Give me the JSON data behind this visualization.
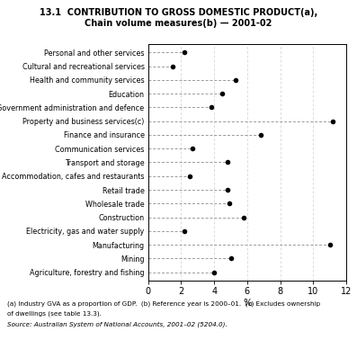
{
  "title1": "13.1  CONTRIBUTION TO GROSS DOMESTIC PRODUCT(a),",
  "title2": "Chain volume measures(b) — 2001-02",
  "categories": [
    "Agriculture, forestry and fishing",
    "Mining",
    "Manufacturing",
    "Electricity, gas and water supply",
    "Construction",
    "Wholesale trade",
    "Retail trade",
    "Accommodation, cafes and restaurants",
    "Transport and storage",
    "Communication services",
    "Finance and insurance",
    "Property and business services(c)",
    "Government administration and defence",
    "Education",
    "Health and community services",
    "Cultural and recreational services",
    "Personal and other services"
  ],
  "values": [
    4.0,
    5.0,
    11.0,
    2.2,
    5.8,
    4.9,
    4.8,
    2.5,
    4.8,
    2.7,
    6.8,
    11.2,
    3.8,
    4.5,
    5.3,
    1.5,
    2.2
  ],
  "xlabel": "%",
  "xlim": [
    0,
    12
  ],
  "xticks": [
    0,
    2,
    4,
    6,
    8,
    10,
    12
  ],
  "note1": "(a) Industry GVA as a proportion of GDP.  (b) Reference year is 2000–01.  (c) Excludes ownership",
  "note2": "of dwellings (see table 13.3).",
  "source": "Source: Australian System of National Accounts, 2001–02 (5204.0).",
  "bg_color": "#ffffff",
  "dot_color": "#000000",
  "dash_color": "#999999"
}
